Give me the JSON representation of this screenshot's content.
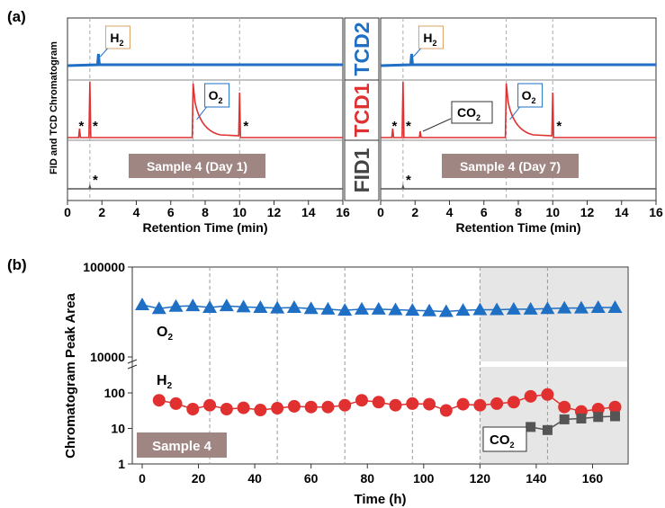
{
  "panel_a": {
    "label": "(a)",
    "ylabel": "FID and TCD Chromatogram",
    "xlabel": "Retention Time (min)",
    "xticks": [
      "0",
      "2",
      "4",
      "6",
      "8",
      "10",
      "12",
      "14",
      "16"
    ],
    "detectors": [
      {
        "name": "TCD2",
        "color": "#1f6fc4"
      },
      {
        "name": "TCD1",
        "color": "#e03030"
      },
      {
        "name": "FID1",
        "color": "#444444"
      }
    ],
    "left": {
      "sample_label": "Sample 4 (Day 1)"
    },
    "right": {
      "sample_label": "Sample 4 (Day 7)",
      "co2_label": "CO",
      "co2_sub": "2"
    },
    "h2_label": "H",
    "h2_sub": "2",
    "o2_label": "O",
    "o2_sub": "2",
    "star": "*"
  },
  "panel_b": {
    "label": "(b)",
    "o2_label": "O",
    "o2_sub": "2",
    "h2_label": "H",
    "h2_sub": "2",
    "co2_label": "CO",
    "co2_sub": "2",
    "sample_label": "Sample 4"
  },
  "chart_data": [
    {
      "type": "line",
      "title": "",
      "xlabel": "Retention Time (min)",
      "ylabel": "FID and TCD Chromatogram",
      "xlim": [
        0,
        16
      ],
      "series": [
        {
          "name": "TCD2",
          "peaks": [
            {
              "x": 1.8,
              "label": "H2"
            }
          ]
        },
        {
          "name": "TCD1",
          "peaks": [
            {
              "x": 0.7,
              "label": "*"
            },
            {
              "x": 1.3,
              "label": "*"
            },
            {
              "x": 7.3,
              "label": "O2"
            },
            {
              "x": 10.0,
              "label": "*"
            }
          ]
        },
        {
          "name": "FID1",
          "peaks": [
            {
              "x": 1.3,
              "label": "*"
            }
          ]
        }
      ]
    },
    {
      "type": "line",
      "title": "",
      "xlabel": "Retention Time (min)",
      "ylabel": "",
      "xlim": [
        0,
        16
      ],
      "series": [
        {
          "name": "TCD2",
          "peaks": [
            {
              "x": 1.8,
              "label": "H2"
            }
          ]
        },
        {
          "name": "TCD1",
          "peaks": [
            {
              "x": 0.7,
              "label": "*"
            },
            {
              "x": 1.3,
              "label": "*"
            },
            {
              "x": 2.3,
              "label": "CO2"
            },
            {
              "x": 7.3,
              "label": "O2"
            },
            {
              "x": 10.0,
              "label": "*"
            }
          ]
        },
        {
          "name": "FID1",
          "peaks": [
            {
              "x": 1.3,
              "label": "*"
            }
          ]
        }
      ]
    },
    {
      "type": "scatter",
      "title": "",
      "xlabel": "Time (h)",
      "ylabel": "Chromatogram Peak Area",
      "xlim": [
        0,
        168
      ],
      "xticks": [
        0,
        20,
        40,
        60,
        80,
        100,
        120,
        140,
        160
      ],
      "yticks_low": [
        "1",
        "10",
        "100"
      ],
      "yticks_high": [
        "10000",
        "100000"
      ],
      "shaded_region": [
        120,
        170
      ],
      "series": [
        {
          "name": "O2",
          "color": "#1f6fc4",
          "marker": "triangle",
          "x": [
            0,
            6,
            12,
            18,
            24,
            30,
            36,
            42,
            48,
            54,
            60,
            66,
            72,
            78,
            84,
            90,
            96,
            102,
            108,
            114,
            120,
            126,
            132,
            138,
            144,
            150,
            156,
            162,
            168
          ],
          "y": [
            38000,
            34500,
            36500,
            37000,
            35500,
            37000,
            36000,
            35500,
            35000,
            35500,
            34500,
            34000,
            33000,
            34000,
            34000,
            33500,
            33000,
            32500,
            32000,
            33000,
            33500,
            33500,
            34000,
            34000,
            34500,
            35000,
            35000,
            35500,
            35500
          ]
        },
        {
          "name": "H2",
          "color": "#e03030",
          "marker": "circle",
          "x": [
            6,
            12,
            18,
            24,
            30,
            36,
            42,
            48,
            54,
            60,
            66,
            72,
            78,
            84,
            90,
            96,
            102,
            108,
            114,
            120,
            126,
            132,
            138,
            144,
            150,
            156,
            162,
            168
          ],
          "y": [
            62,
            50,
            35,
            45,
            35,
            38,
            33,
            37,
            42,
            40,
            40,
            45,
            62,
            55,
            45,
            50,
            48,
            32,
            48,
            45,
            50,
            55,
            80,
            90,
            40,
            30,
            35,
            40
          ]
        },
        {
          "name": "CO2",
          "color": "#555555",
          "marker": "square",
          "x": [
            138,
            144,
            150,
            156,
            162,
            168
          ],
          "y": [
            11,
            9,
            18,
            19,
            21,
            22
          ]
        }
      ]
    }
  ]
}
